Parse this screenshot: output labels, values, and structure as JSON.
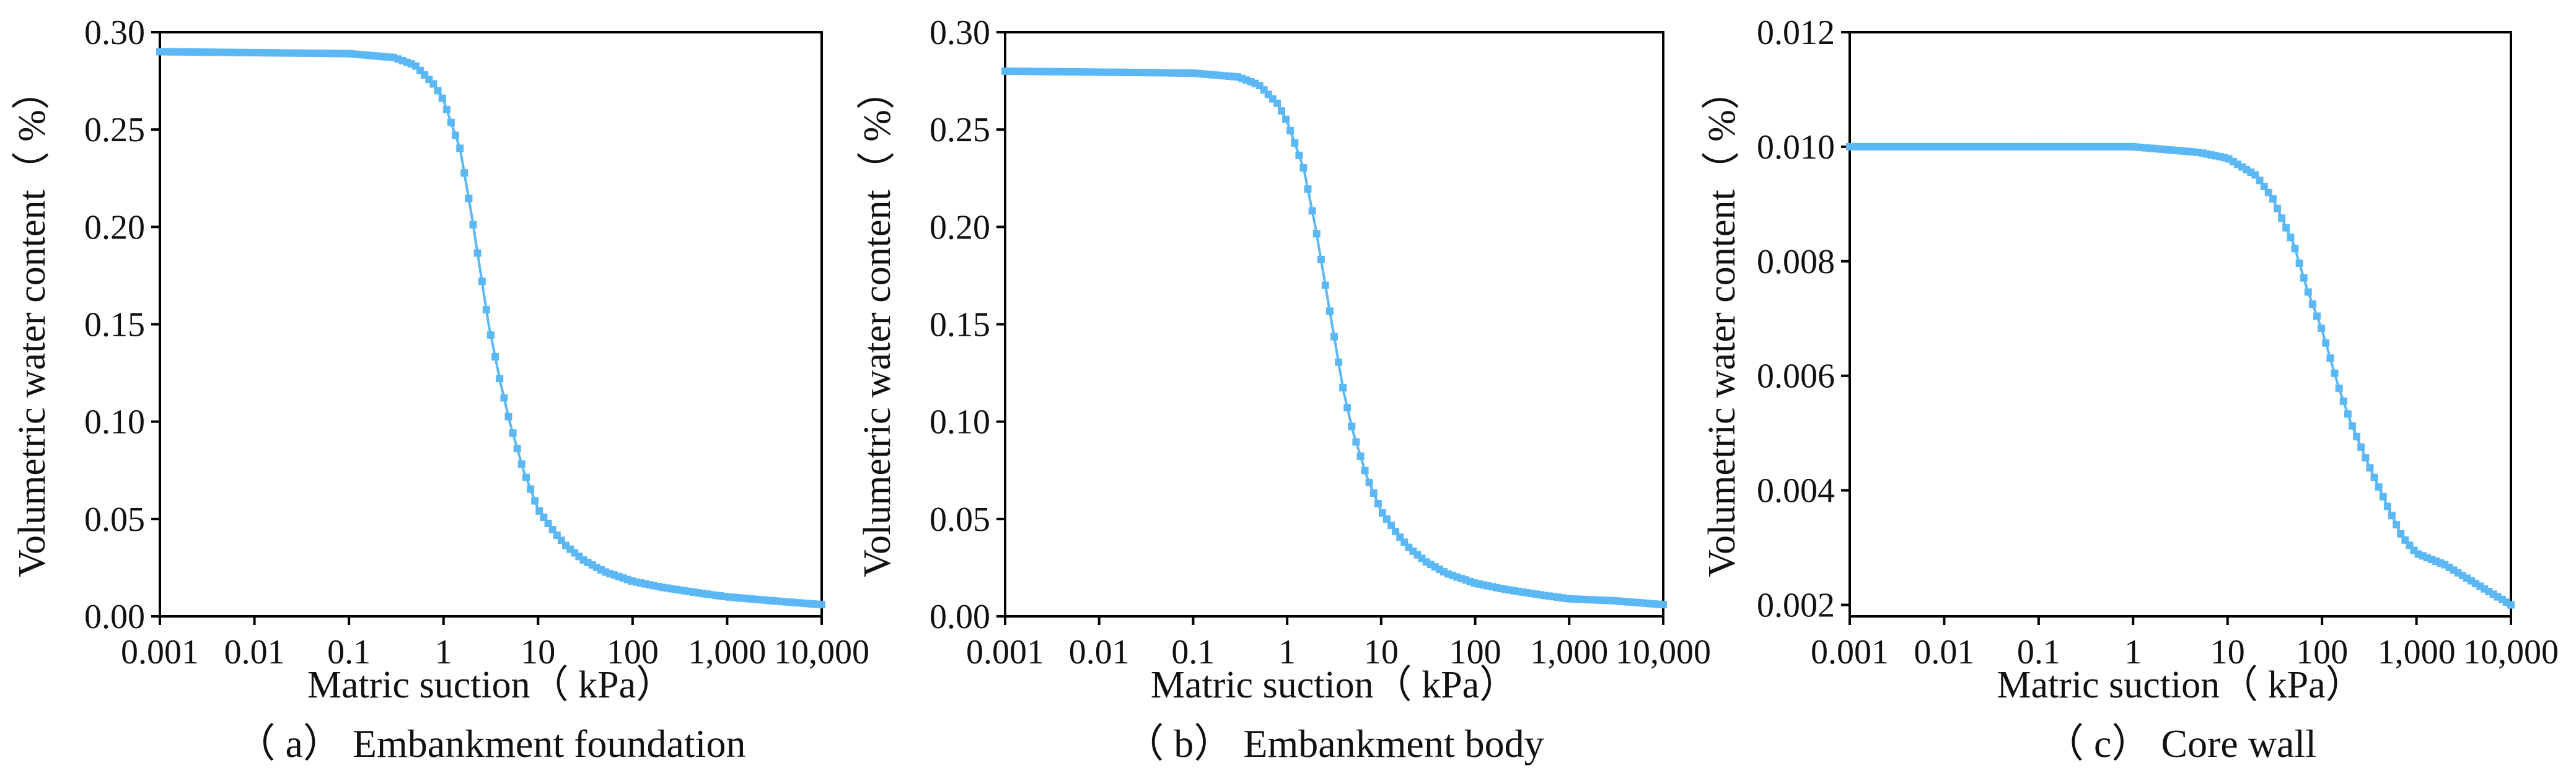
{
  "chart_data": [
    {
      "type": "line",
      "title": "（ a） Embankment foundation",
      "xlabel": "Matric suction（ kPa）",
      "ylabel": "Volumetric water content（ %）",
      "xscale": "log",
      "xlim": [
        0.001,
        10000
      ],
      "ylim": [
        0,
        0.3
      ],
      "xticks": [
        0.001,
        0.01,
        0.1,
        1,
        10,
        100,
        1000,
        10000
      ],
      "xtick_labels": [
        "0.001",
        "0.01",
        "0.1",
        "1",
        "10",
        "100",
        "1,000",
        "10,000"
      ],
      "yticks": [
        0,
        0.05,
        0.1,
        0.15,
        0.2,
        0.25,
        0.3
      ],
      "ytick_labels": [
        "0.00",
        "0.05",
        "0.10",
        "0.15",
        "0.20",
        "0.25",
        "0.30"
      ],
      "series": [
        {
          "name": "Embankment foundation",
          "color": "#5BB8F5",
          "marker": "square",
          "x": [
            0.001,
            0.1,
            0.3,
            0.5,
            0.8,
            1,
            1.5,
            2,
            3,
            4,
            5,
            7,
            10,
            15,
            20,
            30,
            50,
            100,
            200,
            500,
            1000,
            3000,
            10000
          ],
          "y": [
            0.29,
            0.289,
            0.287,
            0.283,
            0.273,
            0.265,
            0.24,
            0.205,
            0.15,
            0.12,
            0.1,
            0.075,
            0.055,
            0.043,
            0.036,
            0.029,
            0.023,
            0.018,
            0.015,
            0.012,
            0.01,
            0.008,
            0.006
          ]
        }
      ]
    },
    {
      "type": "line",
      "title": "（ b） Embankment body",
      "xlabel": "Matric suction（ kPa）",
      "ylabel": "Volumetric water content（ %）",
      "xscale": "log",
      "xlim": [
        0.001,
        10000
      ],
      "ylim": [
        0,
        0.3
      ],
      "xticks": [
        0.001,
        0.01,
        0.1,
        1,
        10,
        100,
        1000,
        10000
      ],
      "xtick_labels": [
        "0.001",
        "0.01",
        "0.1",
        "1",
        "10",
        "100",
        "1,000",
        "10,000"
      ],
      "yticks": [
        0,
        0.05,
        0.1,
        0.15,
        0.2,
        0.25,
        0.3
      ],
      "ytick_labels": [
        "0.00",
        "0.05",
        "0.10",
        "0.15",
        "0.20",
        "0.25",
        "0.30"
      ],
      "series": [
        {
          "name": "Embankment body",
          "color": "#5BB8F5",
          "marker": "square",
          "x": [
            0.001,
            0.1,
            0.3,
            0.5,
            0.8,
            1,
            1.5,
            2,
            3,
            4,
            5,
            7,
            10,
            15,
            20,
            30,
            50,
            100,
            200,
            500,
            1000,
            3000,
            10000
          ],
          "y": [
            0.28,
            0.279,
            0.277,
            0.273,
            0.263,
            0.254,
            0.23,
            0.2,
            0.15,
            0.115,
            0.095,
            0.072,
            0.054,
            0.042,
            0.035,
            0.028,
            0.022,
            0.017,
            0.014,
            0.011,
            0.009,
            0.008,
            0.006
          ]
        }
      ]
    },
    {
      "type": "line",
      "title": "（ c） Core wall",
      "xlabel": "Matric suction（ kPa）",
      "ylabel": "Volumetric water content（ %）",
      "xscale": "log",
      "xlim": [
        0.001,
        10000
      ],
      "ylim": [
        0.0018,
        0.012
      ],
      "xticks": [
        0.001,
        0.01,
        0.1,
        1,
        10,
        100,
        1000,
        10000
      ],
      "xtick_labels": [
        "0.001",
        "0.01",
        "0.1",
        "1",
        "10",
        "100",
        "1,000",
        "10,000"
      ],
      "yticks": [
        0.002,
        0.004,
        0.006,
        0.008,
        0.01,
        0.012
      ],
      "ytick_labels": [
        "0.002",
        "0.004",
        "0.006",
        "0.008",
        "0.010",
        "0.012"
      ],
      "series": [
        {
          "name": "Core wall",
          "color": "#5BB8F5",
          "marker": "square",
          "x": [
            0.001,
            1,
            5,
            10,
            20,
            30,
            50,
            70,
            100,
            150,
            200,
            300,
            500,
            700,
            1000,
            2000,
            5000,
            10000
          ],
          "y": [
            0.01,
            0.01,
            0.0099,
            0.0098,
            0.0095,
            0.0091,
            0.0083,
            0.0075,
            0.0068,
            0.0058,
            0.0052,
            0.0045,
            0.0037,
            0.0032,
            0.0029,
            0.0027,
            0.0023,
            0.002
          ]
        }
      ]
    }
  ]
}
